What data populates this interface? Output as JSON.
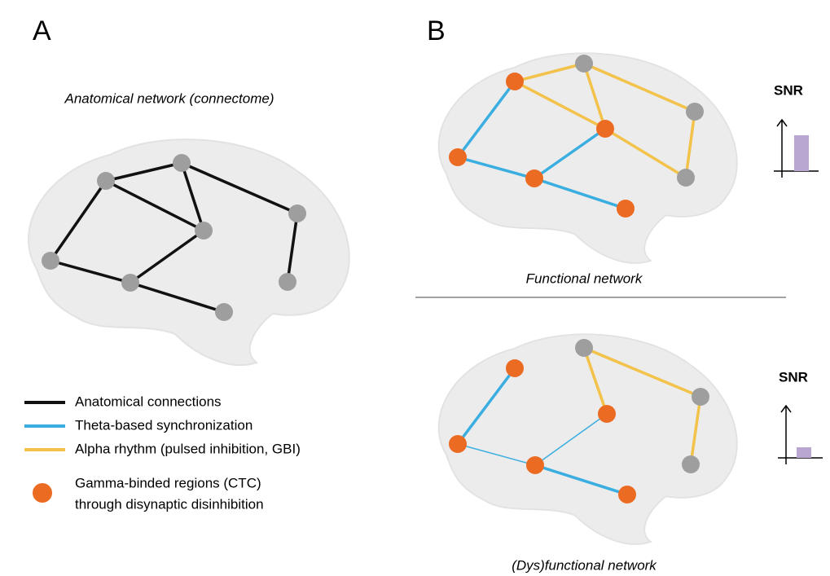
{
  "panel_a": {
    "label": "A",
    "title": "Anatomical network (connectome)"
  },
  "panel_b": {
    "label": "B",
    "functional": {
      "caption": "Functional network",
      "snr_label": "SNR"
    },
    "dysfunctional": {
      "caption": "(Dys)functional network",
      "snr_label": "SNR"
    }
  },
  "legend": [
    {
      "text": "Anatomical connections"
    },
    {
      "text": "Theta-based synchronization"
    },
    {
      "text": "Alpha rhythm (pulsed inhibition, GBI)"
    },
    {
      "lines": [
        "Gamma-binded regions (CTC)",
        "through disynaptic disinhibition"
      ]
    }
  ]
}
